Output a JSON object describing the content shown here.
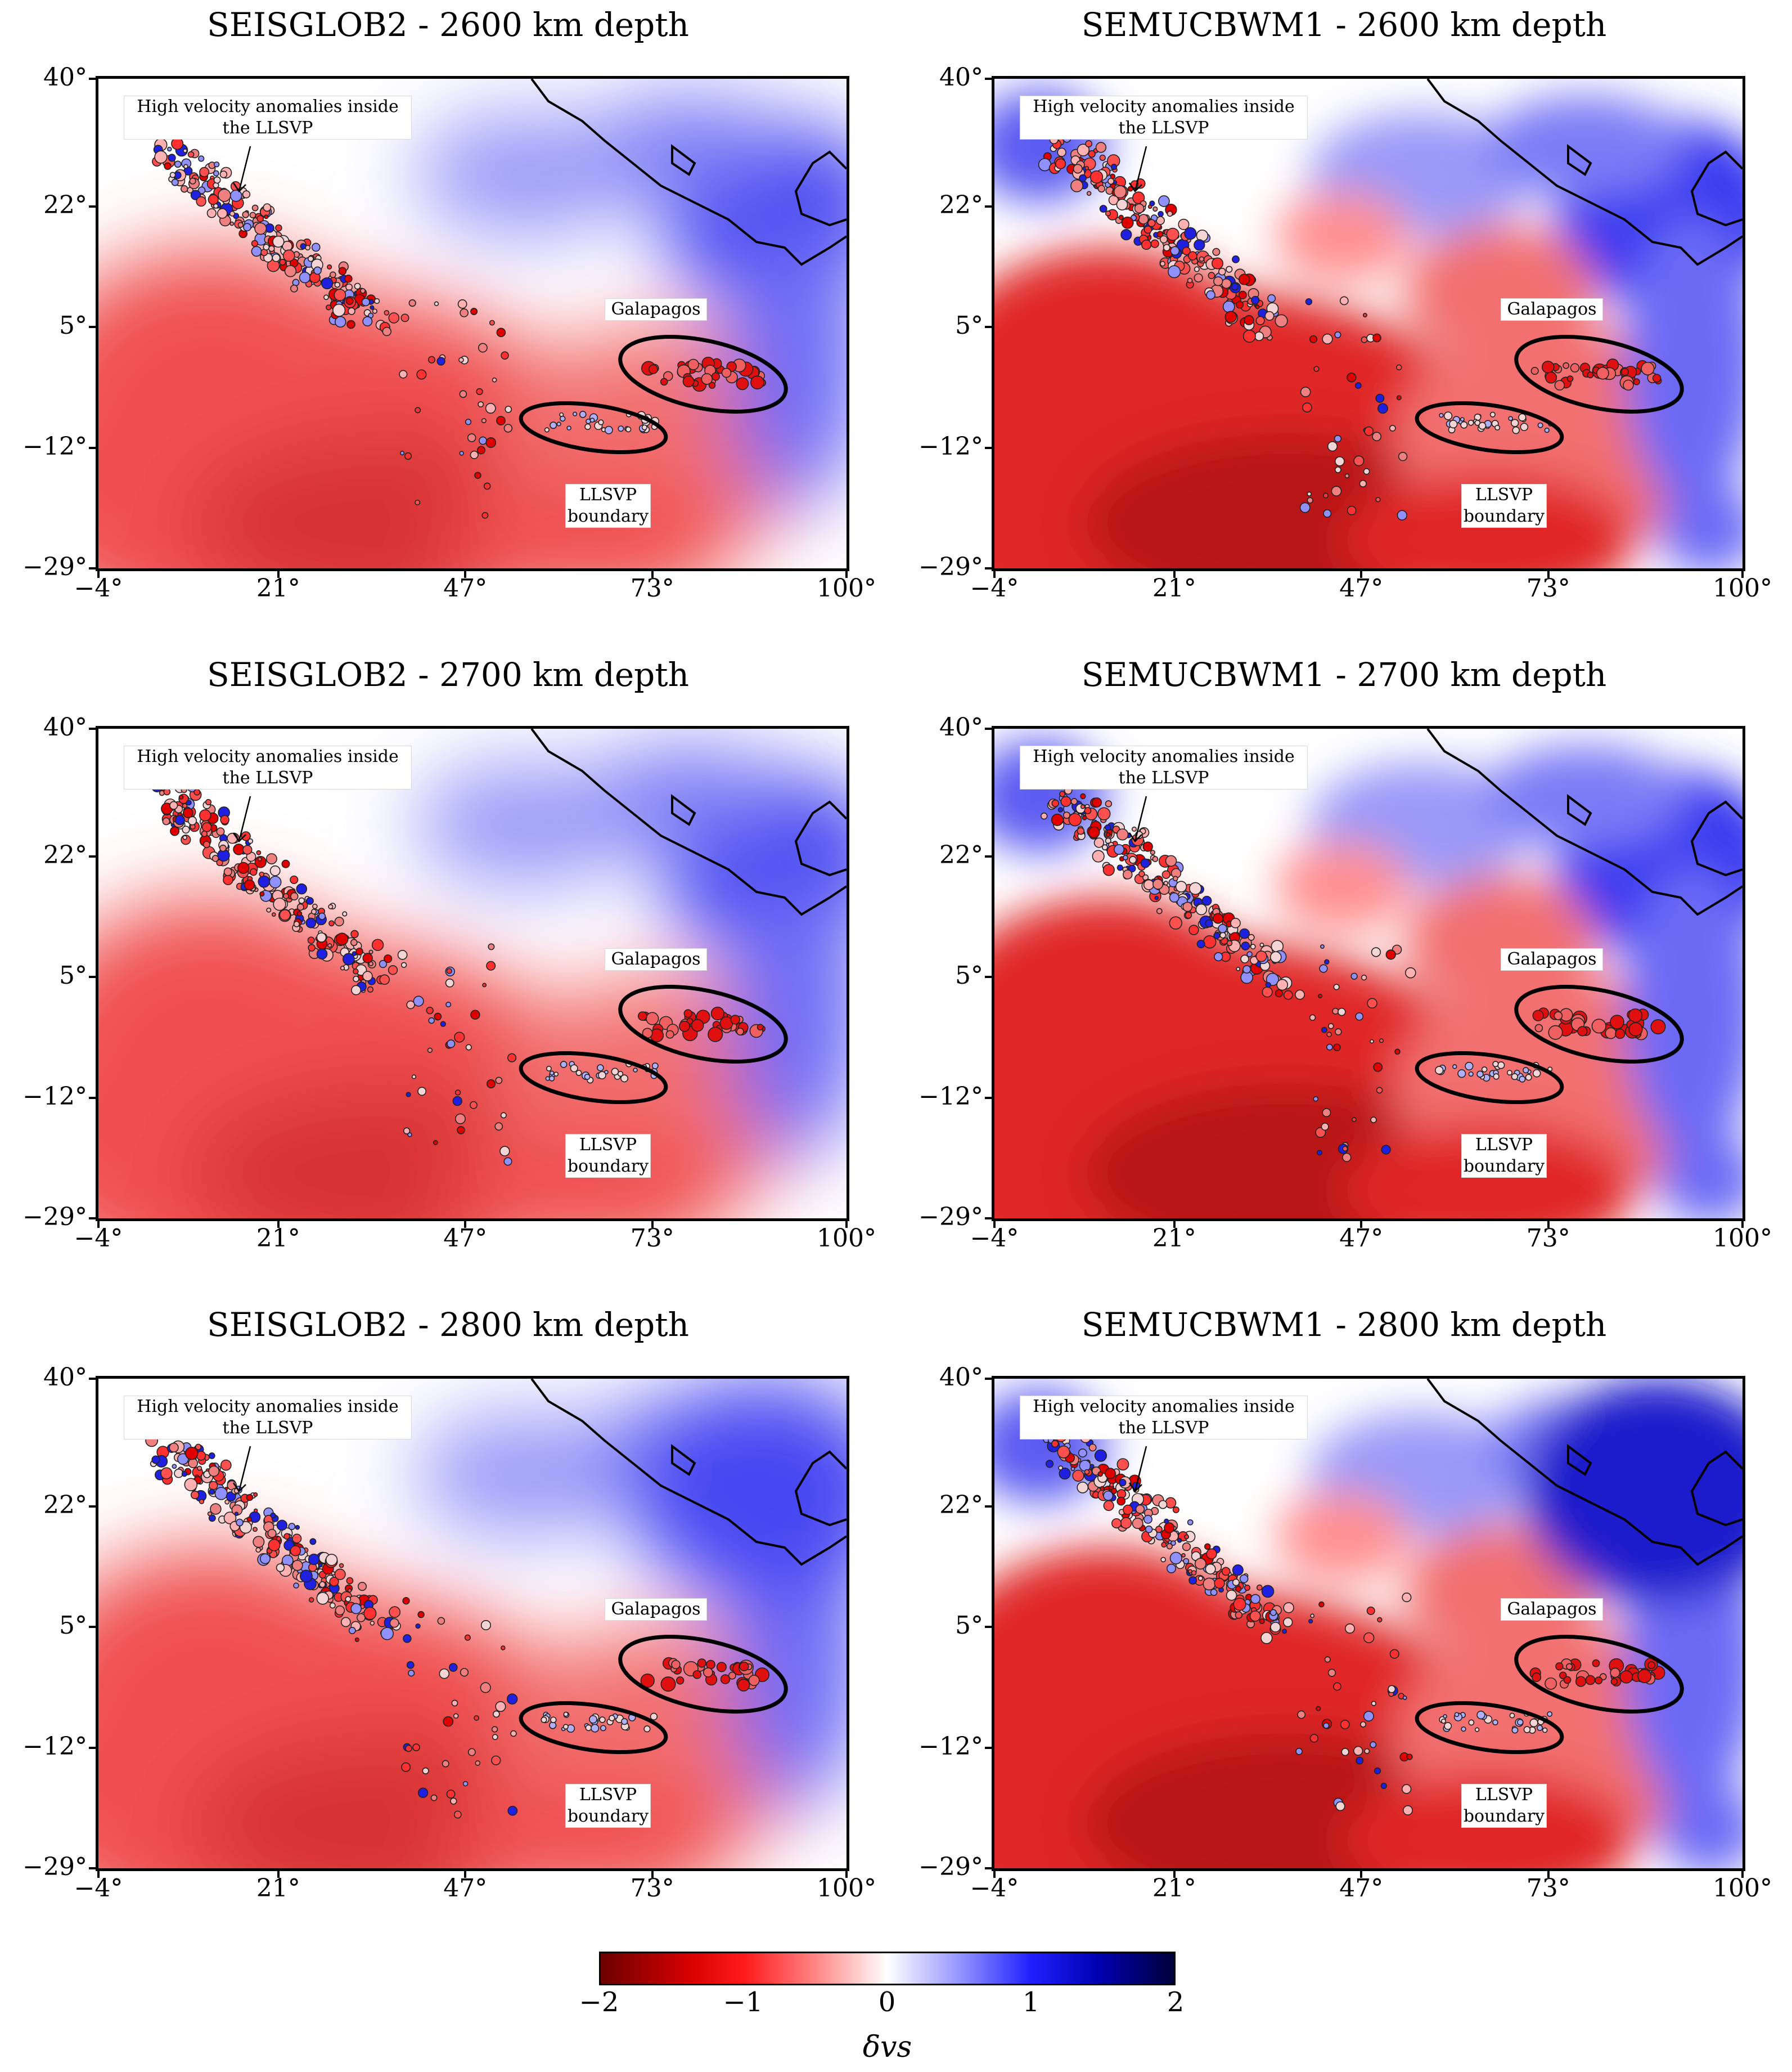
{
  "panels": [
    {
      "title": "SEISGLOB2 - 2600 km depth",
      "model": "SEISGLOB2",
      "depth_km": 2600,
      "variant": "a",
      "annotation_high": "High velocity anomalies inside the LLSVP",
      "annotation_galapagos": "Galapagos",
      "annotation_llsvp": "LLSVP boundary"
    },
    {
      "title": "SEMUCBWM1 - 2600 km depth",
      "model": "SEMUCBWM1",
      "depth_km": 2600,
      "variant": "b",
      "annotation_high": "High velocity anomalies inside the LLSVP",
      "annotation_galapagos": "Galapagos",
      "annotation_llsvp": "LLSVP boundary"
    },
    {
      "title": "SEISGLOB2 - 2700 km depth",
      "model": "SEISGLOB2",
      "depth_km": 2700,
      "variant": "a",
      "annotation_high": "High velocity anomalies inside the LLSVP",
      "annotation_galapagos": "Galapagos",
      "annotation_llsvp": "LLSVP boundary"
    },
    {
      "title": "SEMUCBWM1 - 2700 km depth",
      "model": "SEMUCBWM1",
      "depth_km": 2700,
      "variant": "b",
      "annotation_high": "High velocity anomalies inside the LLSVP",
      "annotation_galapagos": "Galapagos",
      "annotation_llsvp": "LLSVP boundary"
    },
    {
      "title": "SEISGLOB2 - 2800 km depth",
      "model": "SEISGLOB2",
      "depth_km": 2800,
      "variant": "a",
      "annotation_high": "High velocity anomalies inside the LLSVP",
      "annotation_galapagos": "Galapagos",
      "annotation_llsvp": "LLSVP boundary"
    },
    {
      "title": "SEMUCBWM1 - 2800 km depth",
      "model": "SEMUCBWM1",
      "depth_km": 2800,
      "variant": "b",
      "annotation_high": "High velocity anomalies inside the LLSVP",
      "annotation_galapagos": "Galapagos",
      "annotation_llsvp": "LLSVP boundary"
    }
  ],
  "axes": {
    "x_ticks": [
      "−4°",
      "21°",
      "47°",
      "73°",
      "100°"
    ],
    "y_ticks": [
      "40°",
      "22°",
      "5°",
      "−12°",
      "−29°"
    ],
    "x_values": [
      -4,
      21,
      47,
      73,
      100
    ],
    "y_values": [
      40,
      22,
      5,
      -12,
      -29
    ]
  },
  "colorbar": {
    "ticks": [
      "−2",
      "−1",
      "0",
      "1",
      "2"
    ],
    "tick_values": [
      -2,
      -1,
      0,
      1,
      2
    ],
    "label": "δvs",
    "colors": {
      "neg_strong": "#6b0000",
      "neg": "#e80000",
      "zero": "#ffffff",
      "pos": "#0000ff",
      "pos_strong": "#00003a"
    }
  }
}
